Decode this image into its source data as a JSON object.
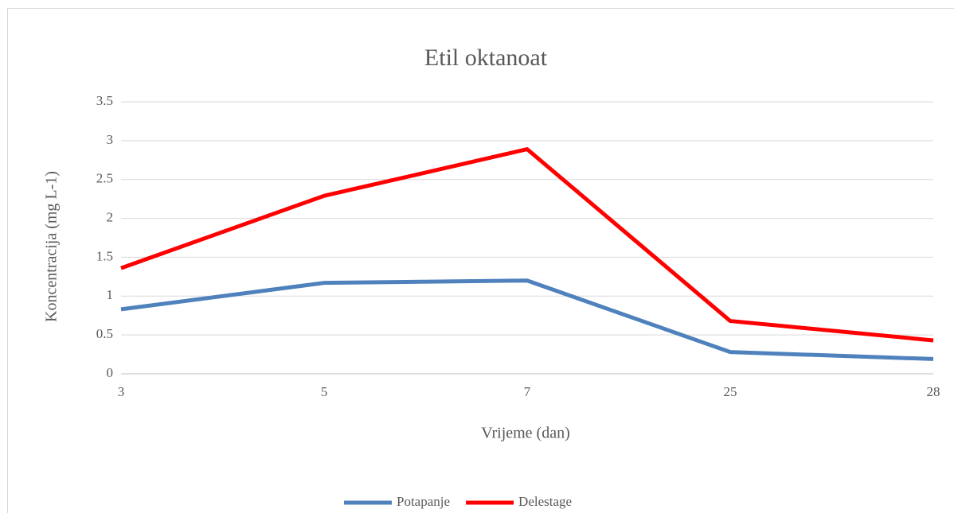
{
  "chart_data": {
    "type": "line",
    "title": "Etil oktanoat",
    "x_label": "Vrijeme (dan)",
    "y_label": "Koncentracija (mg L-1)",
    "categories": [
      "3",
      "5",
      "7",
      "25",
      "28"
    ],
    "series": [
      {
        "name": "Potapanje",
        "color": "#4f81bd",
        "values": [
          0.83,
          1.17,
          1.2,
          0.28,
          0.19
        ]
      },
      {
        "name": "Delestage",
        "color": "#ff0000",
        "values": [
          1.36,
          2.29,
          2.89,
          0.68,
          0.43
        ]
      }
    ],
    "ylim": [
      0,
      3.5
    ],
    "yticks": [
      0,
      0.5,
      1,
      1.5,
      2,
      2.5,
      3,
      3.5
    ],
    "grid": true,
    "legend": "bottom"
  }
}
